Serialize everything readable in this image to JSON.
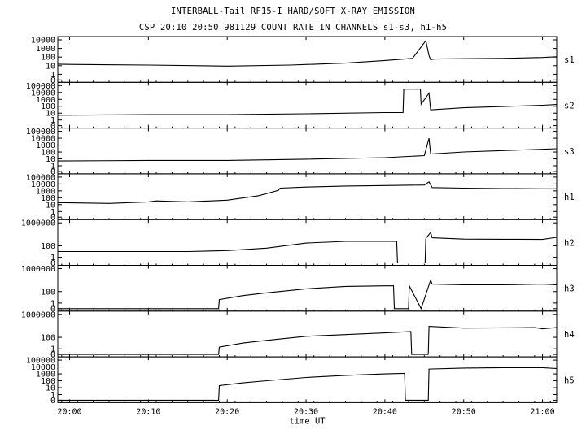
{
  "header": {
    "title": "INTERBALL-Tail RF15-I HARD/SOFT X-RAY EMISSION",
    "subtitle": "CSP 20:10 20:50 981129  COUNT RATE IN CHANNELS s1-s3, h1-h5"
  },
  "chart_data": {
    "type": "line",
    "xlabel": "time UT",
    "x_unit": "minutes after 20:00",
    "xlim": [
      -1.5,
      61.8
    ],
    "xticks": [
      {
        "t": 0,
        "label": "20:00"
      },
      {
        "t": 10,
        "label": "20:10"
      },
      {
        "t": 20,
        "label": "20:20"
      },
      {
        "t": 30,
        "label": "20:30"
      },
      {
        "t": 40,
        "label": "20:40"
      },
      {
        "t": 50,
        "label": "20:50"
      },
      {
        "t": 60,
        "label": "21:00"
      }
    ],
    "y_scale": "log",
    "panels": [
      {
        "name": "s1",
        "ymax": 10000,
        "ylabels": [
          "10000",
          "1000",
          "100",
          "10",
          "1",
          "0"
        ],
        "series": [
          {
            "name": "s1",
            "x": [
              -1.5,
              0,
              10,
              20,
              28,
              35,
              40,
              43.5,
              45.2,
              45.6,
              45.8,
              46.3,
              50,
              55,
              60,
              61.8
            ],
            "y": [
              15,
              14,
              12,
              9,
              12,
              20,
              40,
              70,
              8000,
              150,
              50,
              60,
              65,
              70,
              90,
              110
            ]
          }
        ]
      },
      {
        "name": "s2",
        "ymax": 100000,
        "ylabels": [
          "100000",
          "10000",
          "1000",
          "100",
          "10",
          "1",
          "0"
        ],
        "series": [
          {
            "name": "s2",
            "x": [
              -1.5,
              10,
              20,
              30,
              40,
              42.3,
              42.4,
              44.5,
              44.6,
              45.6,
              45.8,
              50,
              55,
              60,
              61.8
            ],
            "y": [
              5,
              6,
              6,
              8,
              12,
              12,
              30000,
              30000,
              200,
              8000,
              30,
              60,
              90,
              140,
              180
            ]
          }
        ]
      },
      {
        "name": "s3",
        "ymax": 100000,
        "ylabels": [
          "100000",
          "10000",
          "1000",
          "100",
          "10",
          "1",
          "0"
        ],
        "series": [
          {
            "name": "s3",
            "x": [
              -1.5,
              10,
              20,
              30,
              40,
              45,
              45.6,
              45.8,
              50,
              55,
              60,
              61.8
            ],
            "y": [
              5,
              6,
              6,
              9,
              15,
              30,
              10000,
              50,
              100,
              160,
              250,
              300
            ]
          }
        ]
      },
      {
        "name": "h1",
        "ymax": 100000,
        "ylabels": [
          "100000",
          "10000",
          "1000",
          "100",
          "10",
          "1",
          "0"
        ],
        "series": [
          {
            "name": "h1",
            "x": [
              -1.5,
              5,
              10,
              11,
              15,
              20,
              24,
              26.5,
              26.7,
              30,
              35,
              40,
              45,
              45.6,
              46,
              50,
              55,
              60,
              61.8
            ],
            "y": [
              20,
              15,
              25,
              35,
              25,
              45,
              200,
              1200,
              2500,
              3500,
              5000,
              6000,
              7000,
              20000,
              3000,
              2500,
              2200,
              2000,
              2000
            ]
          }
        ]
      },
      {
        "name": "h2",
        "ymax": 1000000,
        "ylabels": [
          "1000000",
          "100",
          "1",
          "0"
        ],
        "series": [
          {
            "name": "h2",
            "x": [
              -1.5,
              9,
              10,
              15,
              20,
              25,
              30,
              35,
              40,
              41.5,
              41.6,
              45.1,
              45.2,
              45.8,
              46,
              50,
              55,
              60,
              61.8
            ],
            "y": [
              10,
              10,
              10,
              10,
              15,
              40,
              300,
              600,
              600,
              600,
              0,
              0,
              2000,
              20000,
              2500,
              1500,
              1400,
              1300,
              3000
            ]
          }
        ]
      },
      {
        "name": "h3",
        "ymax": 1000000,
        "ylabels": [
          "1000000",
          "100",
          "1",
          "0"
        ],
        "series": [
          {
            "name": "h3",
            "x": [
              -1.5,
              18.9,
              19,
              22,
              25,
              30,
              35,
              40,
              41.1,
              41.2,
              43,
              43.1,
              44.6,
              45.8,
              46,
              50,
              55,
              60,
              61.8
            ],
            "y": [
              0,
              0,
              4,
              20,
              60,
              300,
              800,
              1000,
              1000,
              0,
              0,
              1000,
              0,
              10000,
              2000,
              1500,
              1500,
              2000,
              1500
            ]
          }
        ]
      },
      {
        "name": "h4",
        "ymax": 1000000,
        "ylabels": [
          "1000000",
          "100",
          "1",
          "0"
        ],
        "series": [
          {
            "name": "h4",
            "x": [
              -1.5,
              18.9,
              19,
              22,
              25,
              30,
              35,
              40,
              43.3,
              43.4,
              45.5,
              45.6,
              50,
              55,
              59,
              60,
              61.8
            ],
            "y": [
              0,
              0,
              2,
              10,
              30,
              150,
              300,
              600,
              1000,
              0,
              0,
              8000,
              4000,
              4500,
              5000,
              3000,
              5000
            ]
          }
        ]
      },
      {
        "name": "h5",
        "ymax": 100000,
        "ylabels": [
          "100000",
          "10000",
          "1000",
          "100",
          "10",
          "1",
          "0"
        ],
        "series": [
          {
            "name": "h5",
            "x": [
              -1.5,
              18.9,
              19,
              22,
              25,
              30,
              35,
              40,
              42.5,
              42.6,
              45.5,
              45.6,
              50,
              55,
              60,
              61.8
            ],
            "y": [
              0,
              0,
              20,
              50,
              100,
              300,
              600,
              1000,
              1200,
              0,
              0,
              5000,
              7000,
              8000,
              8000,
              6000
            ]
          }
        ]
      }
    ]
  }
}
